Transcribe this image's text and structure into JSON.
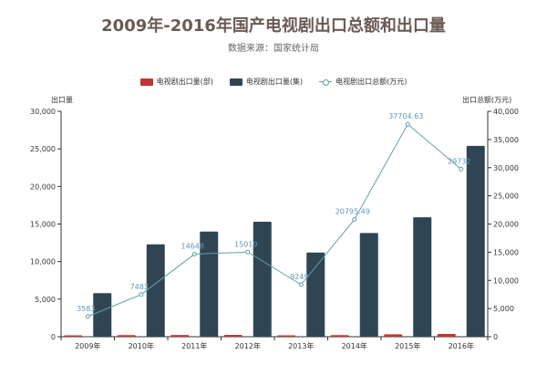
{
  "chart_data": {
    "type": "bar",
    "title": "2009年-2016年国产电视剧出口总额和出口量",
    "subtitle": "数据来源：国家统计局",
    "categories": [
      "2009年",
      "2010年",
      "2011年",
      "2012年",
      "2013年",
      "2014年",
      "2015年",
      "2016年"
    ],
    "xlabel": "",
    "ylabel": "出口量",
    "y2label": "出口总额(万元)",
    "ylim": [
      0,
      30000
    ],
    "y2lim": [
      0,
      40000
    ],
    "yticks": [
      0,
      5000,
      10000,
      15000,
      20000,
      25000,
      30000
    ],
    "y2ticks": [
      0,
      5000,
      10000,
      15000,
      20000,
      25000,
      30000,
      35000,
      40000
    ],
    "ytick_labels": [
      "0",
      "5,000",
      "10,000",
      "15,000",
      "20,000",
      "25,000",
      "30,000"
    ],
    "y2tick_labels": [
      "0",
      "5,000",
      "10,000",
      "15,000",
      "20,000",
      "25,000",
      "30,000",
      "35,000",
      "40,000"
    ],
    "series": [
      {
        "name": "电视剧出口量(部)",
        "type": "bar",
        "axis": "left",
        "values": [
          180,
          210,
          230,
          250,
          180,
          220,
          320,
          360
        ]
      },
      {
        "name": "电视剧出口量(集)",
        "type": "bar",
        "axis": "left",
        "values": [
          5800,
          12300,
          14000,
          15300,
          11200,
          13800,
          15900,
          25400
        ]
      },
      {
        "name": "电视剧出口总额(万元)",
        "type": "line",
        "axis": "right",
        "values": [
          3583,
          7483,
          14648,
          15019,
          9249,
          20795.49,
          37704.63,
          29732
        ],
        "labels": [
          "3583",
          "7483",
          "14648",
          "15019",
          "9249",
          "20795.49",
          "37704.63",
          "29732"
        ]
      }
    ],
    "grid": false,
    "legend_position": "top",
    "colors": {
      "series_0": "#c23531",
      "series_1": "#2f4554",
      "series_2": "#61a0a8",
      "axis": "#333333",
      "label": "#5f97bd"
    }
  }
}
